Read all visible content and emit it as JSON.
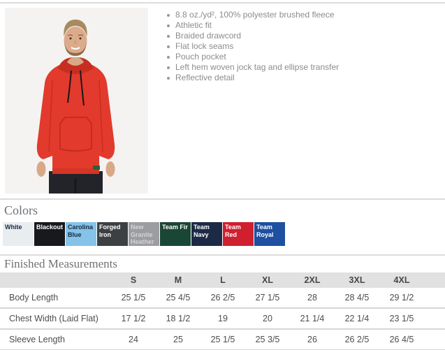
{
  "product": {
    "features": [
      "8.8 oz./yd², 100% polyester brushed fleece",
      "Athletic fit",
      "Braided drawcord",
      "Flat lock seams",
      "Pouch pocket",
      "Left hem woven jock tag and ellipse transfer",
      "Reflective detail"
    ],
    "hoodie_color": "#e23a2c"
  },
  "colors_section": {
    "title": "Colors",
    "swatches": [
      {
        "name": "White",
        "bg": "#e9edf0",
        "text_color": "#16293d"
      },
      {
        "name": "Blackout",
        "bg": "#17191d",
        "text_color": "#ffffff"
      },
      {
        "name": "Carolina Blue",
        "bg": "#85c3e9",
        "text_color": "#16293d"
      },
      {
        "name": "Forged Iron",
        "bg": "#3d4043",
        "text_color": "#ffffff"
      },
      {
        "name": "New Granite Heather",
        "bg": "#9b9da0",
        "text_color": "#d2d4d6"
      },
      {
        "name": "Team Fir",
        "bg": "#1a4636",
        "text_color": "#ffffff"
      },
      {
        "name": "Team Navy",
        "bg": "#1c2a45",
        "text_color": "#ffffff"
      },
      {
        "name": "Team Red",
        "bg": "#d01f2e",
        "text_color": "#ffffff"
      },
      {
        "name": "Team Royal",
        "bg": "#1e4fa0",
        "text_color": "#ffffff"
      }
    ]
  },
  "measurements": {
    "title": "Finished Measurements",
    "columns": [
      "S",
      "M",
      "L",
      "XL",
      "2XL",
      "3XL",
      "4XL"
    ],
    "rows": [
      {
        "label": "Body Length",
        "values": [
          "25 1/5",
          "25 4/5",
          "26 2/5",
          "27 1/5",
          "28",
          "28 4/5",
          "29 1/2"
        ]
      },
      {
        "label": "Chest Width (Laid Flat)",
        "values": [
          "17 1/2",
          "18 1/2",
          "19",
          "20",
          "21 1/4",
          "22 1/4",
          "23 1/5"
        ]
      },
      {
        "label": "Sleeve Length",
        "values": [
          "24",
          "25",
          "25 1/5",
          "25 3/5",
          "26",
          "26 2/5",
          "26 4/5"
        ]
      }
    ],
    "header_bg": "#e1e1e1",
    "row_border_color": "#d6d6d6"
  }
}
